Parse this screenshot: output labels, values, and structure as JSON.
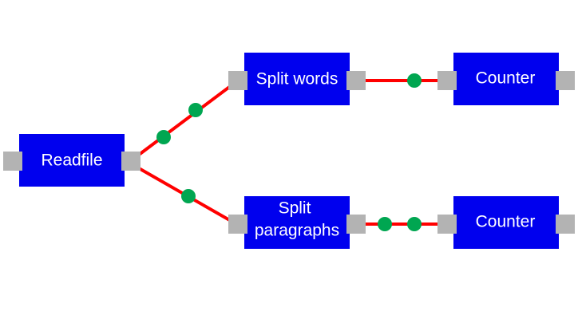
{
  "diagram": {
    "nodes": [
      {
        "id": "readfile",
        "lines": [
          "Readfile"
        ]
      },
      {
        "id": "split-words",
        "lines": [
          "Split words"
        ]
      },
      {
        "id": "split-paragraphs",
        "lines": [
          "Split",
          "paragraphs"
        ]
      },
      {
        "id": "counter-top",
        "lines": [
          "Counter"
        ]
      },
      {
        "id": "counter-bottom",
        "lines": [
          "Counter"
        ]
      }
    ],
    "edges": [
      {
        "from": "readfile",
        "to": "split-words",
        "tokens": 2
      },
      {
        "from": "readfile",
        "to": "split-paragraphs",
        "tokens": 1
      },
      {
        "from": "split-words",
        "to": "counter-top",
        "tokens": 1
      },
      {
        "from": "split-paragraphs",
        "to": "counter-bottom",
        "tokens": 2
      }
    ],
    "colors": {
      "node_fill": "#0000ee",
      "node_text": "#ffffff",
      "port_fill": "#b3b3b3",
      "edge_stroke": "#ff0000",
      "token_fill": "#00a651"
    }
  }
}
